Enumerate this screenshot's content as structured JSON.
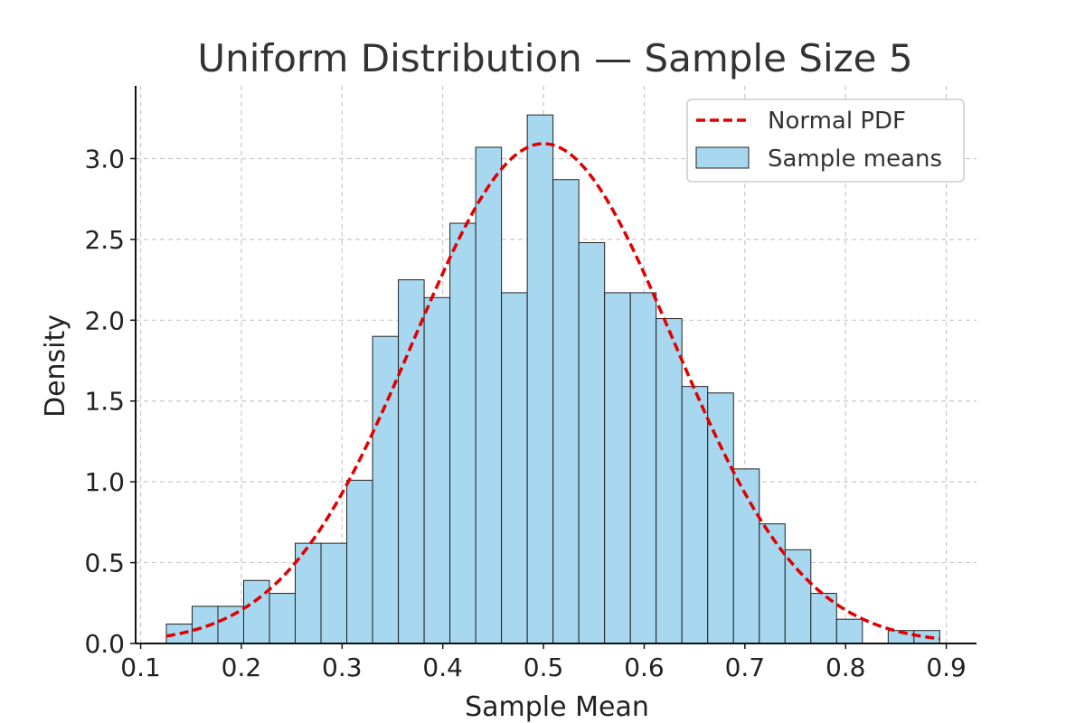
{
  "chart_data": {
    "type": "bar",
    "title": "Uniform Distribution — Sample Size 5",
    "xlabel": "Sample Mean",
    "ylabel": "Density",
    "xlim": [
      0.095,
      0.93
    ],
    "ylim": [
      0,
      3.45
    ],
    "xticks": [
      0.1,
      0.2,
      0.3,
      0.4,
      0.5,
      0.6,
      0.7,
      0.8,
      0.9
    ],
    "xtick_labels": [
      "0.1",
      "0.2",
      "0.3",
      "0.4",
      "0.5",
      "0.6",
      "0.7",
      "0.8",
      "0.9"
    ],
    "yticks": [
      0,
      0.5,
      1.0,
      1.5,
      2.0,
      2.5,
      3.0
    ],
    "ytick_labels": [
      "0.0",
      "0.5",
      "1.0",
      "1.5",
      "2.0",
      "2.5",
      "3.0"
    ],
    "grid": true,
    "legend_position": "top-right",
    "series": [
      {
        "name": "Sample means",
        "kind": "histogram",
        "color": "#a7d8f0",
        "edge_color": "#222222",
        "bin_edges": [
          0.1255,
          0.1511,
          0.1767,
          0.2023,
          0.2279,
          0.2535,
          0.2791,
          0.3047,
          0.3303,
          0.3559,
          0.3815,
          0.4071,
          0.4327,
          0.4583,
          0.4839,
          0.5095,
          0.5351,
          0.5607,
          0.5863,
          0.6119,
          0.6375,
          0.6631,
          0.6887,
          0.7143,
          0.7399,
          0.7655,
          0.7911,
          0.8167,
          0.8423,
          0.8679,
          0.8935
        ],
        "densities": [
          0.12,
          0.23,
          0.23,
          0.39,
          0.31,
          0.62,
          0.62,
          1.01,
          1.9,
          2.25,
          2.14,
          2.6,
          3.07,
          2.17,
          3.27,
          2.87,
          2.48,
          2.17,
          2.17,
          2.01,
          1.59,
          1.55,
          1.08,
          0.74,
          0.58,
          0.31,
          0.15,
          0.0,
          0.08,
          0.08
        ]
      },
      {
        "name": "Normal PDF",
        "kind": "line",
        "color": "#e00000",
        "dashed": true,
        "mean": 0.5,
        "std": 0.129,
        "x_range": [
          0.1255,
          0.8935
        ]
      }
    ]
  }
}
